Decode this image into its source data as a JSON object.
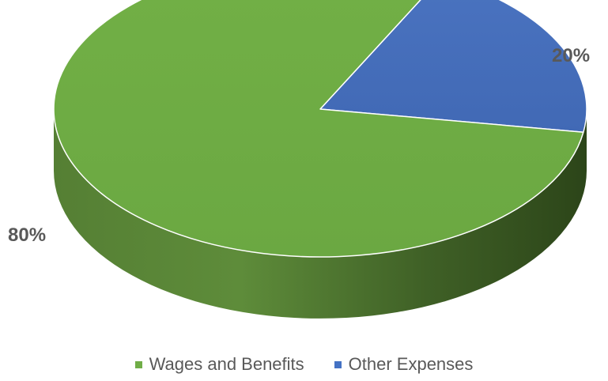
{
  "chart_data": {
    "type": "pie",
    "style": "3d",
    "categories": [
      "Wages and Benefits",
      "Other Expenses"
    ],
    "values": [
      80,
      20
    ],
    "data_labels": [
      "80%",
      "20%"
    ],
    "colors": [
      "#70AD47",
      "#4472C4"
    ],
    "legend_position": "bottom"
  },
  "legend": {
    "items": [
      {
        "label": "Wages and Benefits",
        "color": "#70AD47"
      },
      {
        "label": "Other Expenses",
        "color": "#4472C4"
      }
    ]
  }
}
